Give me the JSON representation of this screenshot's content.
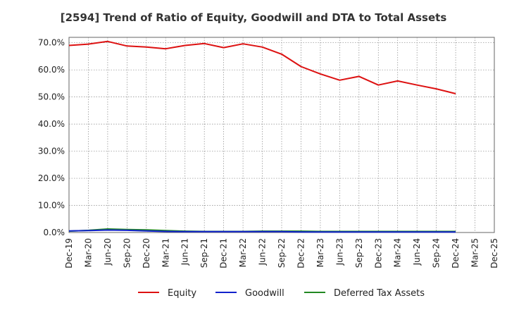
{
  "chart_data": {
    "type": "line",
    "title": "[2594]  Trend of Ratio of Equity, Goodwill and DTA to Total Assets",
    "xlabel": "",
    "ylabel": "",
    "ylim": [
      0,
      72
    ],
    "y_ticks": [
      0,
      10,
      20,
      30,
      40,
      50,
      60,
      70
    ],
    "y_tick_labels": [
      "0.0%",
      "10.0%",
      "20.0%",
      "30.0%",
      "40.0%",
      "50.0%",
      "60.0%",
      "70.0%"
    ],
    "x_tick_labels": [
      "Dec-19",
      "Mar-20",
      "Jun-20",
      "Sep-20",
      "Dec-20",
      "Mar-21",
      "Jun-21",
      "Sep-21",
      "Dec-21",
      "Mar-22",
      "Jun-22",
      "Sep-22",
      "Dec-22",
      "Mar-23",
      "Jun-23",
      "Sep-23",
      "Dec-23",
      "Mar-24",
      "Jun-24",
      "Sep-24",
      "Dec-24",
      "Mar-25",
      "Dec-25"
    ],
    "grid": true,
    "legend_position": "bottom",
    "series": [
      {
        "name": "Equity",
        "color": "#dd1111",
        "values": [
          69.0,
          69.5,
          70.5,
          68.8,
          68.4,
          67.8,
          69.0,
          69.7,
          68.2,
          69.6,
          68.4,
          65.8,
          61.2,
          58.5,
          56.2,
          57.6,
          54.4,
          55.9,
          54.4,
          53.0,
          51.2
        ]
      },
      {
        "name": "Goodwill",
        "color": "#1122cc",
        "values": [
          0.6,
          0.7,
          0.9,
          0.8,
          0.6,
          0.4,
          0.3,
          0.3,
          0.3,
          0.3,
          0.3,
          0.3,
          0.2,
          0.2,
          0.2,
          0.2,
          0.2,
          0.2,
          0.2,
          0.2,
          0.2
        ]
      },
      {
        "name": "Deferred Tax Assets",
        "color": "#228822",
        "values": [
          0.5,
          0.8,
          1.3,
          1.1,
          1.0,
          0.7,
          0.5,
          0.4,
          0.4,
          0.4,
          0.5,
          0.5,
          0.5,
          0.4,
          0.4,
          0.4,
          0.4,
          0.4,
          0.4,
          0.4,
          0.4
        ]
      }
    ]
  }
}
